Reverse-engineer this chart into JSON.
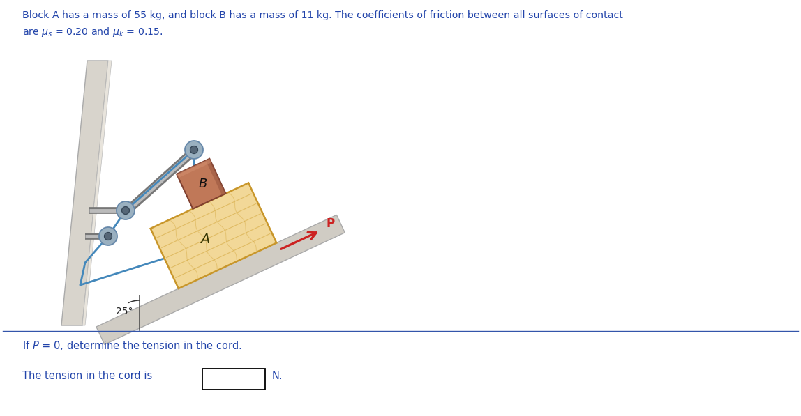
{
  "title_text": "Block A has a mass of 55 kg, and block B has a mass of 11 kg. The coefficients of friction between all surfaces of contact",
  "title_line2": "are μs = 0.20 and μk = 0.15.",
  "angle_label": "25°",
  "label_A": "A",
  "label_B": "B",
  "label_P": "P",
  "question_line1": "If P = 0, determine the tension in the cord.",
  "question_line2": "The tension in the cord is",
  "question_unit": "N.",
  "bg_color": "#ffffff",
  "wall_color_main": "#d8d4cc",
  "wall_color_face": "#e8e4dc",
  "ramp_color": "#d0ccC4",
  "block_A_face": "#f2d898",
  "block_A_edge": "#c8962a",
  "block_A_grain": "#d4a840",
  "block_B_face": "#c07858",
  "block_B_dark": "#9a5840",
  "block_B_edge": "#804030",
  "cord_color": "#4488bb",
  "pulley_rim": "#9ab0c0",
  "pulley_hub": "#556677",
  "rod_dark": "#777777",
  "rod_light": "#bbbbbb",
  "arrow_color": "#cc2222",
  "angle_color": "#333333",
  "text_color": "#2244aa",
  "text_dark": "#111111",
  "sep_color": "#3355aa",
  "figsize": [
    11.48,
    5.97
  ]
}
